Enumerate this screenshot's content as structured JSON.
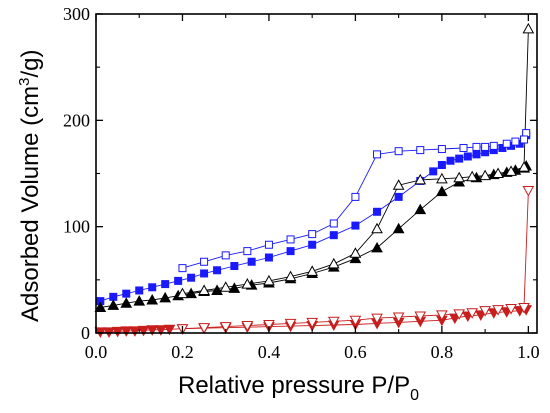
{
  "chart_data": {
    "type": "line",
    "xlabel": "Relative pressure P/P",
    "xlabel_sub": "0",
    "ylabel_main": "Adsorbed Volume (cm",
    "ylabel_sup": "3",
    "ylabel_end": "/g)",
    "xlim": [
      0.0,
      1.02
    ],
    "ylim": [
      0,
      300
    ],
    "xticks": [
      "0.0",
      "0.2",
      "0.4",
      "0.6",
      "0.8",
      "1.0"
    ],
    "yticks": [
      "0",
      "100",
      "200",
      "300"
    ],
    "xtick_values": [
      0.0,
      0.2,
      0.4,
      0.6,
      0.8,
      1.0
    ],
    "ytick_values": [
      0,
      100,
      200,
      300
    ],
    "grid": false,
    "series": [
      {
        "color": "#1a1aff",
        "marker": "square",
        "filled": true,
        "x": [
          0.01,
          0.04,
          0.07,
          0.1,
          0.13,
          0.16,
          0.19,
          0.22,
          0.25,
          0.28,
          0.32,
          0.36,
          0.4,
          0.45,
          0.5,
          0.55,
          0.6,
          0.65,
          0.7,
          0.75,
          0.78,
          0.8,
          0.82,
          0.84,
          0.86,
          0.88,
          0.9,
          0.92,
          0.94,
          0.96,
          0.98,
          0.99,
          0.995
        ],
        "y": [
          30,
          34,
          37,
          40,
          43,
          46,
          49,
          52,
          56,
          59,
          63,
          67,
          71,
          77,
          83,
          92,
          101,
          114,
          128,
          143,
          152,
          158,
          162,
          164,
          166,
          168,
          170,
          172,
          174,
          176,
          178,
          182,
          186
        ]
      },
      {
        "color": "#1a1aff",
        "marker": "square",
        "filled": false,
        "x": [
          0.995,
          0.99,
          0.97,
          0.95,
          0.92,
          0.9,
          0.88,
          0.85,
          0.8,
          0.75,
          0.7,
          0.65,
          0.6,
          0.55,
          0.5,
          0.45,
          0.4,
          0.35,
          0.3,
          0.25,
          0.2
        ],
        "y": [
          188,
          182,
          180,
          178,
          176,
          175,
          175,
          174,
          173,
          172,
          171,
          168,
          128,
          103,
          93,
          88,
          83,
          77,
          73,
          67,
          61
        ]
      },
      {
        "color": "#000000",
        "marker": "triangle-up",
        "filled": true,
        "x": [
          0.01,
          0.04,
          0.07,
          0.1,
          0.13,
          0.16,
          0.19,
          0.22,
          0.25,
          0.28,
          0.32,
          0.36,
          0.4,
          0.45,
          0.5,
          0.55,
          0.6,
          0.65,
          0.7,
          0.75,
          0.8,
          0.84,
          0.88,
          0.92,
          0.95,
          0.97,
          0.99,
          0.995
        ],
        "y": [
          24,
          26,
          28,
          30,
          31,
          33,
          35,
          37,
          39,
          40,
          42,
          45,
          47,
          51,
          56,
          62,
          70,
          80,
          98,
          116,
          133,
          142,
          146,
          149,
          151,
          153,
          155,
          157
        ]
      },
      {
        "color": "#000000",
        "marker": "triangle-up",
        "filled": false,
        "x": [
          1.0,
          0.99,
          0.96,
          0.93,
          0.9,
          0.87,
          0.84,
          0.8,
          0.75,
          0.7,
          0.65,
          0.6,
          0.55,
          0.5,
          0.45,
          0.4,
          0.35,
          0.3,
          0.25,
          0.2
        ],
        "y": [
          286,
          156,
          152,
          150,
          148,
          147,
          146,
          145,
          144,
          139,
          98,
          75,
          65,
          58,
          53,
          49,
          46,
          43,
          40,
          37
        ]
      },
      {
        "color": "#c81e1e",
        "marker": "triangle-down",
        "filled": true,
        "x": [
          0.01,
          0.03,
          0.05,
          0.07,
          0.09,
          0.11,
          0.13,
          0.15,
          0.17,
          0.2,
          0.25,
          0.3,
          0.35,
          0.4,
          0.45,
          0.5,
          0.55,
          0.6,
          0.65,
          0.7,
          0.75,
          0.8,
          0.83,
          0.86,
          0.89,
          0.92,
          0.95,
          0.98,
          0.995
        ],
        "y": [
          1,
          1,
          1.5,
          2,
          2,
          2.5,
          3,
          3,
          3.5,
          4,
          4.5,
          5,
          5.5,
          6,
          6.5,
          7,
          7.5,
          8,
          9,
          10,
          11,
          12,
          14,
          16,
          17,
          19,
          20,
          21,
          22
        ]
      },
      {
        "color": "#c81e1e",
        "marker": "triangle-down",
        "filled": false,
        "x": [
          1.0,
          0.99,
          0.96,
          0.93,
          0.9,
          0.87,
          0.84,
          0.8,
          0.75,
          0.7,
          0.65,
          0.6,
          0.55,
          0.5,
          0.45,
          0.4,
          0.35,
          0.3,
          0.25,
          0.2
        ],
        "y": [
          134,
          24,
          23,
          22,
          21,
          19,
          18,
          17,
          16,
          15,
          14,
          12,
          11,
          10,
          9,
          8,
          7,
          6,
          5,
          4
        ]
      }
    ]
  }
}
